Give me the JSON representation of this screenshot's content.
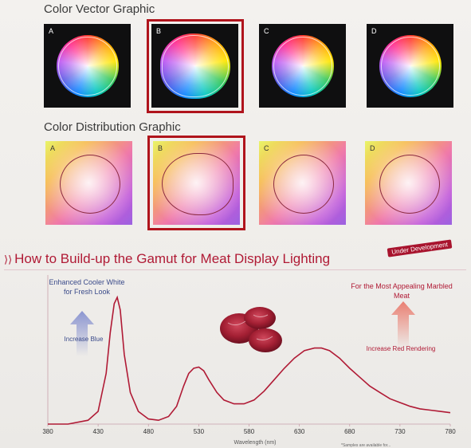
{
  "vector_section": {
    "title": "Color Vector Graphic",
    "tiles": [
      {
        "label": "A"
      },
      {
        "label": "B"
      },
      {
        "label": "C"
      },
      {
        "label": "D"
      }
    ],
    "selected": "B"
  },
  "distribution_section": {
    "title": "Color Distribution Graphic",
    "tiles": [
      {
        "label": "A"
      },
      {
        "label": "B"
      },
      {
        "label": "C"
      },
      {
        "label": "D"
      }
    ],
    "selected": "B"
  },
  "gamut": {
    "title": "How to Build-up the Gamut for Meat Display Lighting",
    "badge": "Under Development",
    "notes": {
      "cooler_white": "Enhanced Cooler White for Fresh Look",
      "increase_blue": "Increase Blue",
      "appealing_meat": "For the Most Appealing Marbled Meat",
      "increase_red": "Increase Red Rendering"
    },
    "footnote": "*Samples are available for..."
  },
  "colors": {
    "accent": "#b01a35",
    "selection": "#b0141c",
    "curve": "#b01a35",
    "blue_text": "#3a4a8a"
  },
  "chart_data": {
    "type": "line",
    "xlabel": "Wavelength (nm)",
    "ylabel": "",
    "xlim": [
      380,
      780
    ],
    "ylim": [
      0,
      1
    ],
    "x_ticks": [
      "380",
      "430",
      "480",
      "530",
      "580",
      "630",
      "680",
      "730",
      "780"
    ],
    "series": [
      {
        "x": [
          380,
          400,
          420,
          430,
          438,
          442,
          446,
          449,
          452,
          456,
          462,
          470,
          480,
          490,
          500,
          508,
          515,
          520,
          525,
          530,
          535,
          540,
          548,
          555,
          565,
          575,
          585,
          595,
          605,
          615,
          625,
          635,
          645,
          652,
          660,
          670,
          680,
          690,
          700,
          710,
          720,
          730,
          740,
          750,
          760,
          770,
          780
        ],
        "y": [
          0.0,
          0.0,
          0.03,
          0.1,
          0.4,
          0.72,
          0.95,
          1.0,
          0.9,
          0.55,
          0.25,
          0.1,
          0.04,
          0.03,
          0.06,
          0.14,
          0.3,
          0.4,
          0.44,
          0.45,
          0.42,
          0.35,
          0.25,
          0.19,
          0.16,
          0.16,
          0.19,
          0.26,
          0.35,
          0.44,
          0.52,
          0.58,
          0.6,
          0.6,
          0.58,
          0.52,
          0.44,
          0.37,
          0.3,
          0.25,
          0.2,
          0.17,
          0.14,
          0.12,
          0.11,
          0.1,
          0.09
        ]
      }
    ]
  }
}
